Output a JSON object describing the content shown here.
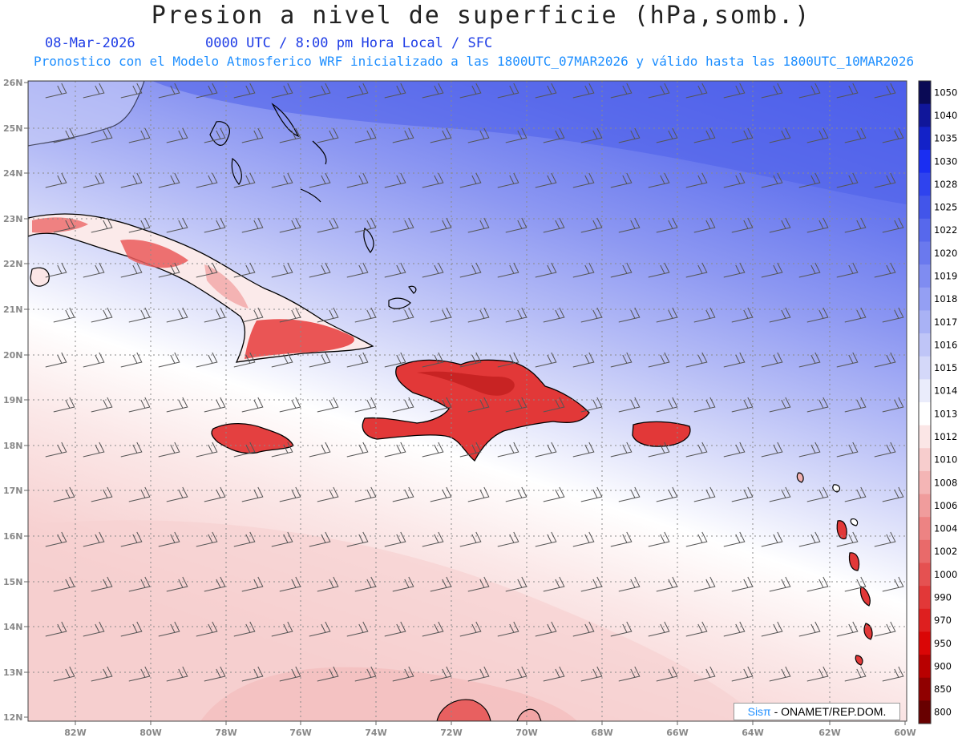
{
  "header": {
    "title": "Presion a nivel de superficie (hPa,somb.)",
    "date": "08-Mar-2026",
    "time_info": "0000 UTC / 8:00 pm Hora Local / SFC",
    "subtitle": "Pronostico con el Modelo Atmosferico WRF inicializado a las 1800UTC_07MAR2026 y válido hasta las  1800UTC_10MAR2026"
  },
  "map": {
    "lat_labels": [
      "26N",
      "25N",
      "24N",
      "23N",
      "22N",
      "21N",
      "20N",
      "19N",
      "18N",
      "17N",
      "16N",
      "15N",
      "14N",
      "13N",
      "12N"
    ],
    "lon_labels": [
      "82W",
      "80W",
      "78W",
      "76W",
      "74W",
      "72W",
      "70W",
      "68W",
      "66W",
      "64W",
      "62W",
      "60W"
    ]
  },
  "colorbar": {
    "labels": [
      "1050",
      "1040",
      "1035",
      "1030",
      "1028",
      "1025",
      "1022",
      "1020",
      "1019",
      "1018",
      "1017",
      "1016",
      "1015",
      "1014",
      "1013",
      "1012",
      "1010",
      "1008",
      "1006",
      "1004",
      "1002",
      "1000",
      "990",
      "970",
      "950",
      "900",
      "850",
      "800"
    ],
    "colors": [
      "#0a0a55",
      "#10169a",
      "#1322c8",
      "#1a2ef2",
      "#2f43ee",
      "#4255ea",
      "#5768ec",
      "#6a79ee",
      "#7f8cf1",
      "#949ff3",
      "#a9b2f5",
      "#bfc5f7",
      "#d4d8f9",
      "#eaecfb",
      "#ffffff",
      "#fbe6e6",
      "#f7cdcd",
      "#f4b5b5",
      "#f09c9c",
      "#ed8383",
      "#e96a6a",
      "#e55151",
      "#e23838",
      "#de1f1f",
      "#da0606",
      "#b80000",
      "#900000",
      "#680000"
    ]
  },
  "credit": {
    "brand": "Sisπ",
    "text": " - ONAMET/REP.DOM."
  }
}
